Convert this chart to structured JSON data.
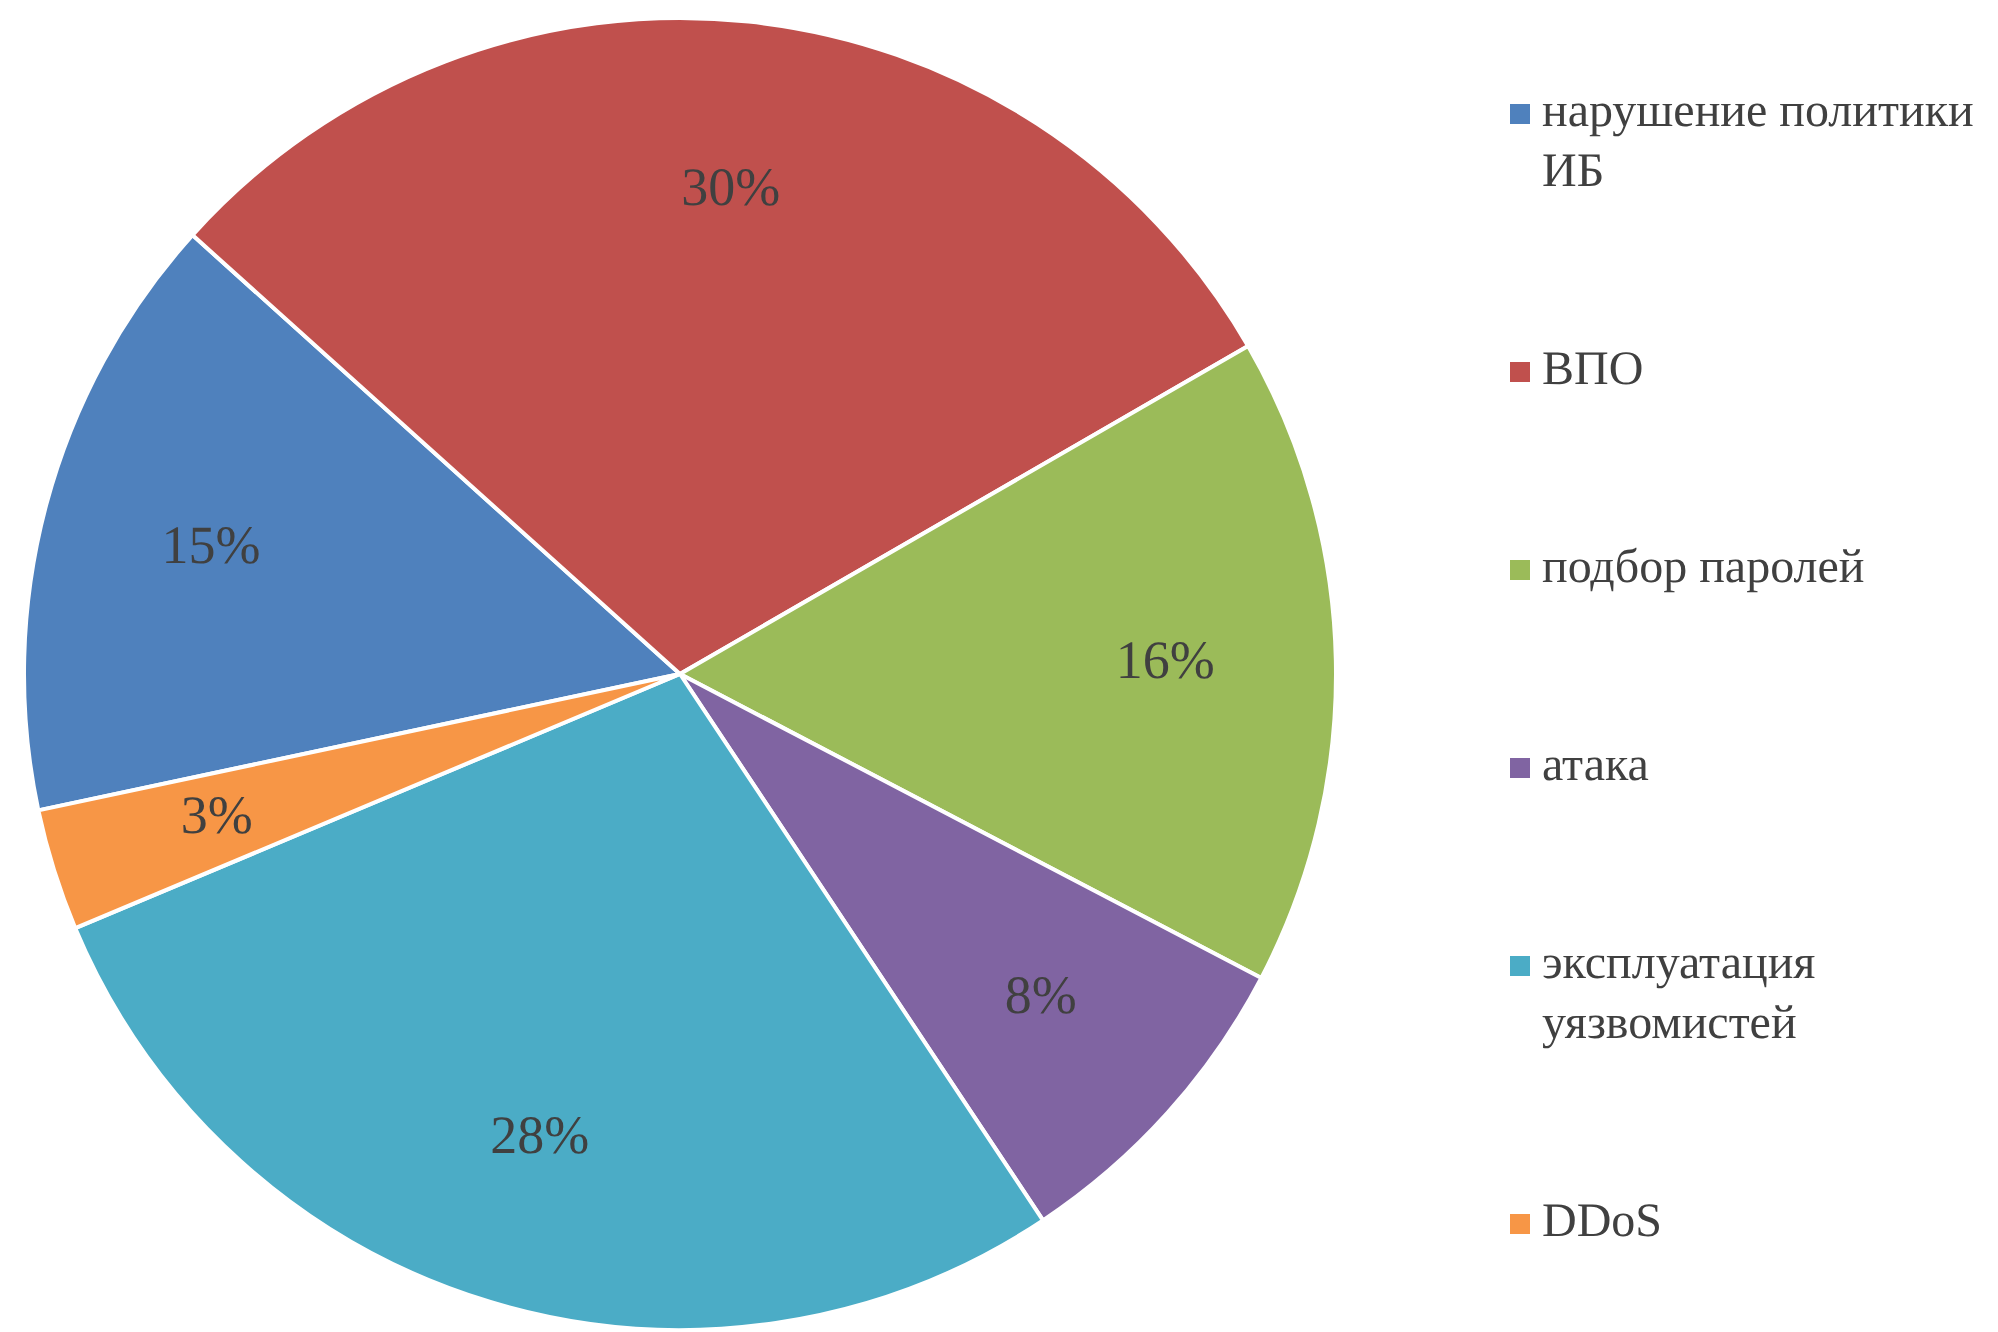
{
  "chart_data": {
    "type": "pie",
    "categories": [
      "нарушение политики ИБ",
      "ВПО",
      "подбор паролей",
      "атака",
      "эксплуатация уязвомистей",
      "DDoS"
    ],
    "values": [
      15,
      30,
      16,
      8,
      28,
      3
    ],
    "colors": [
      "#4f81bd",
      "#c0504d",
      "#9bbb59",
      "#8064a2",
      "#4bacc6",
      "#f79646"
    ],
    "value_labels": [
      "15%",
      "30%",
      "16%",
      "8%",
      "28%",
      "3%"
    ],
    "legend": "right"
  }
}
